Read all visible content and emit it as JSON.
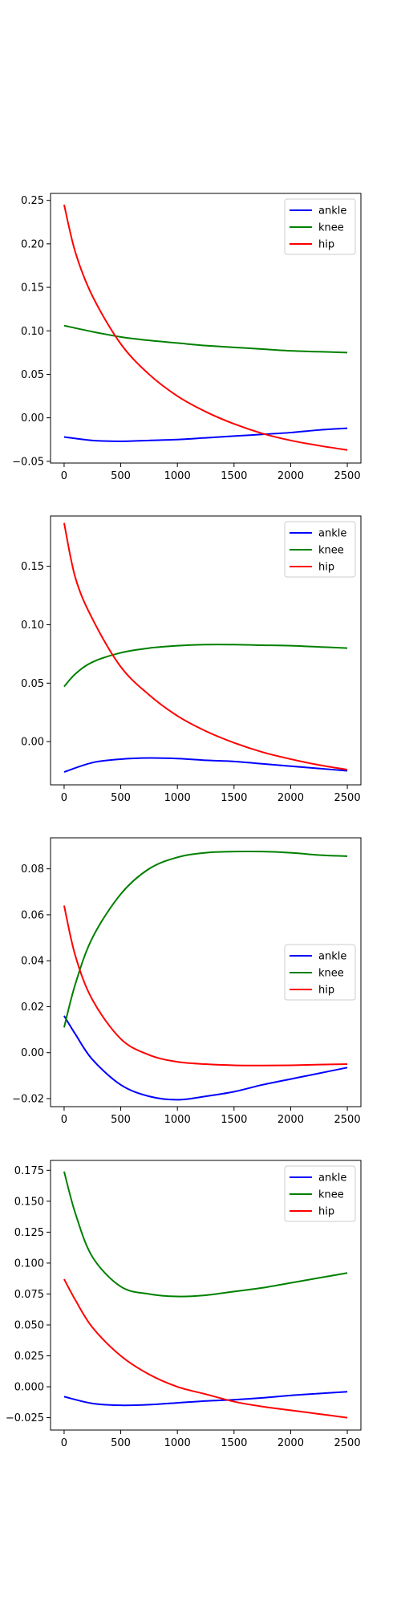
{
  "chart_data": [
    {
      "type": "line",
      "xlim": [
        -120,
        2620
      ],
      "ylim": [
        -0.052,
        0.258
      ],
      "xticks": [
        0,
        500,
        1000,
        1500,
        2000,
        2500
      ],
      "yticks": [
        -0.05,
        0.0,
        0.05,
        0.1,
        0.15,
        0.2,
        0.25
      ],
      "ytick_labels": [
        "−0.05",
        "0.00",
        "0.05",
        "0.10",
        "0.15",
        "0.20",
        "0.25"
      ],
      "legend_position": "top-right",
      "grid": false,
      "series": [
        {
          "name": "ankle",
          "color": "#0000ff",
          "x": [
            0,
            250,
            500,
            750,
            1000,
            1250,
            1500,
            1750,
            2000,
            2250,
            2500
          ],
          "y": [
            -0.022,
            -0.026,
            -0.027,
            -0.026,
            -0.025,
            -0.023,
            -0.021,
            -0.019,
            -0.017,
            -0.014,
            -0.012
          ]
        },
        {
          "name": "knee",
          "color": "#008000",
          "x": [
            0,
            250,
            500,
            750,
            1000,
            1250,
            1500,
            1750,
            2000,
            2250,
            2500
          ],
          "y": [
            0.106,
            0.099,
            0.093,
            0.089,
            0.086,
            0.083,
            0.081,
            0.079,
            0.077,
            0.076,
            0.075
          ]
        },
        {
          "name": "hip",
          "color": "#ff0000",
          "x": [
            0,
            100,
            250,
            500,
            750,
            1000,
            1250,
            1500,
            1750,
            2000,
            2250,
            2500
          ],
          "y": [
            0.245,
            0.19,
            0.14,
            0.085,
            0.05,
            0.025,
            0.007,
            -0.007,
            -0.018,
            -0.026,
            -0.032,
            -0.037
          ]
        }
      ]
    },
    {
      "type": "line",
      "xlim": [
        -120,
        2620
      ],
      "ylim": [
        -0.037,
        0.193
      ],
      "xticks": [
        0,
        500,
        1000,
        1500,
        2000,
        2500
      ],
      "yticks": [
        0.0,
        0.05,
        0.1,
        0.15
      ],
      "ytick_labels": [
        "0.00",
        "0.05",
        "0.10",
        "0.15"
      ],
      "legend_position": "top-right",
      "grid": false,
      "series": [
        {
          "name": "ankle",
          "color": "#0000ff",
          "x": [
            0,
            250,
            500,
            750,
            1000,
            1250,
            1500,
            1750,
            2000,
            2250,
            2500
          ],
          "y": [
            -0.026,
            -0.018,
            -0.015,
            -0.014,
            -0.0145,
            -0.016,
            -0.017,
            -0.019,
            -0.021,
            -0.023,
            -0.025
          ]
        },
        {
          "name": "knee",
          "color": "#008000",
          "x": [
            0,
            100,
            250,
            500,
            750,
            1000,
            1250,
            1500,
            1750,
            2000,
            2250,
            2500
          ],
          "y": [
            0.047,
            0.058,
            0.068,
            0.076,
            0.08,
            0.082,
            0.083,
            0.083,
            0.0825,
            0.082,
            0.081,
            0.08
          ]
        },
        {
          "name": "hip",
          "color": "#ff0000",
          "x": [
            0,
            100,
            250,
            500,
            750,
            1000,
            1250,
            1500,
            1750,
            2000,
            2250,
            2500
          ],
          "y": [
            0.187,
            0.14,
            0.105,
            0.064,
            0.04,
            0.022,
            0.009,
            -0.001,
            -0.009,
            -0.015,
            -0.02,
            -0.024
          ]
        }
      ]
    },
    {
      "type": "line",
      "xlim": [
        -120,
        2620
      ],
      "ylim": [
        -0.0235,
        0.0935
      ],
      "xticks": [
        0,
        500,
        1000,
        1500,
        2000,
        2500
      ],
      "yticks": [
        -0.02,
        0.0,
        0.02,
        0.04,
        0.06,
        0.08
      ],
      "ytick_labels": [
        "−0.02",
        "0.00",
        "0.02",
        "0.04",
        "0.06",
        "0.08"
      ],
      "legend_position": "center-right",
      "grid": false,
      "series": [
        {
          "name": "ankle",
          "color": "#0000ff",
          "x": [
            0,
            100,
            250,
            500,
            750,
            1000,
            1250,
            1500,
            1750,
            2000,
            2250,
            2500
          ],
          "y": [
            0.016,
            0.008,
            -0.003,
            -0.014,
            -0.019,
            -0.0205,
            -0.019,
            -0.017,
            -0.014,
            -0.0115,
            -0.009,
            -0.0065
          ]
        },
        {
          "name": "knee",
          "color": "#008000",
          "x": [
            0,
            100,
            250,
            500,
            750,
            1000,
            1250,
            1500,
            1750,
            2000,
            2250,
            2500
          ],
          "y": [
            0.011,
            0.03,
            0.05,
            0.069,
            0.08,
            0.085,
            0.087,
            0.0875,
            0.0875,
            0.087,
            0.086,
            0.0855
          ]
        },
        {
          "name": "hip",
          "color": "#ff0000",
          "x": [
            0,
            100,
            250,
            500,
            750,
            1000,
            1250,
            1500,
            1750,
            2000,
            2250,
            2500
          ],
          "y": [
            0.064,
            0.042,
            0.023,
            0.006,
            -0.001,
            -0.004,
            -0.005,
            -0.0055,
            -0.0056,
            -0.0055,
            -0.0052,
            -0.005
          ]
        }
      ]
    },
    {
      "type": "line",
      "xlim": [
        -120,
        2620
      ],
      "ylim": [
        -0.035,
        0.183
      ],
      "xticks": [
        0,
        500,
        1000,
        1500,
        2000,
        2500
      ],
      "yticks": [
        -0.025,
        0.0,
        0.025,
        0.05,
        0.075,
        0.1,
        0.125,
        0.15,
        0.175
      ],
      "ytick_labels": [
        "−0.025",
        "0.000",
        "0.025",
        "0.050",
        "0.075",
        "0.100",
        "0.125",
        "0.150",
        "0.175"
      ],
      "legend_position": "top-right",
      "grid": false,
      "series": [
        {
          "name": "ankle",
          "color": "#0000ff",
          "x": [
            0,
            250,
            500,
            750,
            1000,
            1250,
            1500,
            1750,
            2000,
            2250,
            2500
          ],
          "y": [
            -0.008,
            -0.0135,
            -0.015,
            -0.0145,
            -0.013,
            -0.0115,
            -0.0105,
            -0.009,
            -0.007,
            -0.0055,
            -0.004
          ]
        },
        {
          "name": "knee",
          "color": "#008000",
          "x": [
            0,
            100,
            250,
            500,
            750,
            1000,
            1250,
            1500,
            1750,
            2000,
            2250,
            2500
          ],
          "y": [
            0.174,
            0.14,
            0.105,
            0.081,
            0.075,
            0.073,
            0.074,
            0.077,
            0.08,
            0.084,
            0.088,
            0.092
          ]
        },
        {
          "name": "hip",
          "color": "#ff0000",
          "x": [
            0,
            100,
            250,
            500,
            750,
            1000,
            1250,
            1500,
            1750,
            2000,
            2250,
            2500
          ],
          "y": [
            0.087,
            0.07,
            0.048,
            0.025,
            0.01,
            0.0,
            -0.006,
            -0.012,
            -0.016,
            -0.019,
            -0.022,
            -0.025
          ]
        }
      ]
    }
  ]
}
